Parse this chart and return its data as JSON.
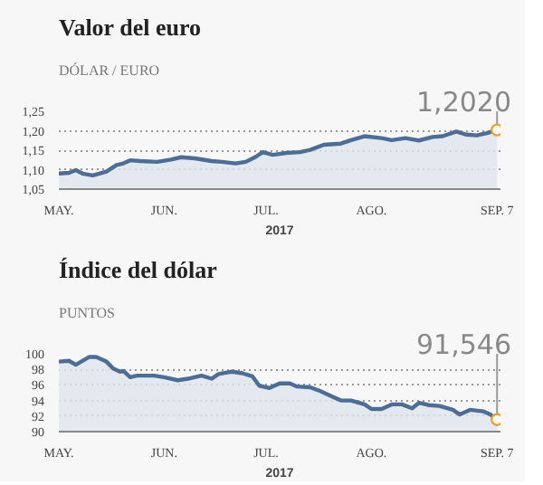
{
  "chart_data": [
    {
      "type": "area",
      "title": "Valor del euro",
      "subtitle": "DÓLAR / EURO",
      "xlabel": "2017",
      "color": "#4e6d96",
      "grid": "y",
      "x": [
        "2017-05-01",
        "2017-05-04",
        "2017-05-06",
        "2017-05-08",
        "2017-05-11",
        "2017-05-15",
        "2017-05-18",
        "2017-05-20",
        "2017-05-22",
        "2017-05-25",
        "2017-05-30",
        "2017-06-03",
        "2017-06-06",
        "2017-06-10",
        "2017-06-15",
        "2017-06-18",
        "2017-06-22",
        "2017-06-25",
        "2017-06-28",
        "2017-06-30",
        "2017-07-03",
        "2017-07-07",
        "2017-07-11",
        "2017-07-14",
        "2017-07-18",
        "2017-07-23",
        "2017-07-26",
        "2017-07-30",
        "2017-08-04",
        "2017-08-07",
        "2017-08-11",
        "2017-08-15",
        "2017-08-19",
        "2017-08-22",
        "2017-08-26",
        "2017-08-29",
        "2017-09-01",
        "2017-09-04",
        "2017-09-07"
      ],
      "values": [
        1.09,
        1.092,
        1.099,
        1.09,
        1.085,
        1.095,
        1.112,
        1.116,
        1.124,
        1.122,
        1.12,
        1.126,
        1.132,
        1.129,
        1.122,
        1.12,
        1.116,
        1.12,
        1.133,
        1.145,
        1.138,
        1.143,
        1.145,
        1.151,
        1.164,
        1.167,
        1.176,
        1.186,
        1.181,
        1.176,
        1.181,
        1.175,
        1.184,
        1.186,
        1.198,
        1.19,
        1.188,
        1.194,
        1.202
      ],
      "xlim": [
        "2017-05-01",
        "2017-09-08"
      ],
      "xticks": [
        {
          "value": "2017-05-01",
          "label": "MAY."
        },
        {
          "value": "2017-06-01",
          "label": "JUN."
        },
        {
          "value": "2017-07-01",
          "label": "JUL."
        },
        {
          "value": "2017-08-01",
          "label": "AGO."
        },
        {
          "value": "2017-09-07",
          "label": "SEP. 7"
        }
      ],
      "ylim": [
        1.05,
        1.25
      ],
      "yticks": [
        {
          "value": 1.05,
          "label": "1,05"
        },
        {
          "value": 1.1,
          "label": "1,10"
        },
        {
          "value": 1.15,
          "label": "1,15"
        },
        {
          "value": 1.2,
          "label": "1,20"
        },
        {
          "value": 1.25,
          "label": "1,25"
        }
      ],
      "annotations": [
        {
          "text": "1,2020",
          "x": "2017-09-07",
          "y": 1.202
        }
      ]
    },
    {
      "type": "area",
      "title": "Índice del dólar",
      "subtitle": "PUNTOS",
      "xlabel": "2017",
      "color": "#4e6d96",
      "grid": "y",
      "x": [
        "2017-05-01",
        "2017-05-04",
        "2017-05-06",
        "2017-05-10",
        "2017-05-12",
        "2017-05-15",
        "2017-05-17",
        "2017-05-19",
        "2017-05-20",
        "2017-05-22",
        "2017-05-24",
        "2017-05-29",
        "2017-06-01",
        "2017-06-05",
        "2017-06-08",
        "2017-06-12",
        "2017-06-15",
        "2017-06-17",
        "2017-06-21",
        "2017-06-24",
        "2017-06-27",
        "2017-06-29",
        "2017-07-02",
        "2017-07-05",
        "2017-07-08",
        "2017-07-10",
        "2017-07-14",
        "2017-07-17",
        "2017-07-20",
        "2017-07-23",
        "2017-07-26",
        "2017-07-30",
        "2017-08-01",
        "2017-08-04",
        "2017-08-07",
        "2017-08-10",
        "2017-08-13",
        "2017-08-15",
        "2017-08-18",
        "2017-08-21",
        "2017-08-25",
        "2017-08-27",
        "2017-08-30",
        "2017-09-03",
        "2017-09-05",
        "2017-09-07"
      ],
      "values": [
        99.0,
        99.1,
        98.6,
        99.6,
        99.6,
        99.0,
        98.1,
        97.7,
        97.8,
        97.0,
        97.2,
        97.2,
        97.0,
        96.6,
        96.8,
        97.2,
        96.8,
        97.4,
        97.7,
        97.5,
        97.1,
        95.9,
        95.6,
        96.2,
        96.2,
        95.8,
        95.7,
        95.2,
        94.6,
        94.0,
        94.0,
        93.5,
        92.9,
        92.9,
        93.5,
        93.5,
        93.0,
        93.7,
        93.4,
        93.3,
        92.8,
        92.2,
        92.8,
        92.6,
        92.2,
        91.546
      ],
      "xlim": [
        "2017-05-01",
        "2017-09-08"
      ],
      "xticks": [
        {
          "value": "2017-05-01",
          "label": "MAY."
        },
        {
          "value": "2017-06-01",
          "label": "JUN."
        },
        {
          "value": "2017-07-01",
          "label": "JUL."
        },
        {
          "value": "2017-08-01",
          "label": "AGO."
        },
        {
          "value": "2017-09-07",
          "label": "SEP. 7"
        }
      ],
      "ylim": [
        90,
        100
      ],
      "yticks": [
        90,
        92,
        94,
        96,
        98,
        100
      ],
      "annotations": [
        {
          "text": "91,546",
          "x": "2017-09-07",
          "y": 91.546
        }
      ]
    }
  ]
}
